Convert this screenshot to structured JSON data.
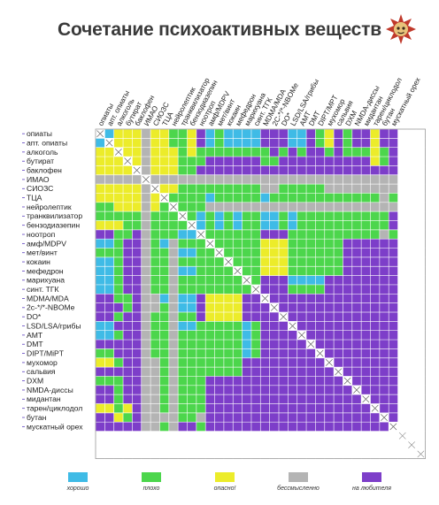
{
  "page": {
    "title": "Сочетание психоактивных веществ"
  },
  "legend": [
    {
      "key": "H",
      "label": "хорошо",
      "color": "#3fbbe6"
    },
    {
      "key": "B",
      "label": "плохо",
      "color": "#4cd64c"
    },
    {
      "key": "D",
      "label": "опасно!",
      "color": "#ecec2a"
    },
    {
      "key": "G",
      "label": "бессмысленно",
      "color": "#b4b4b4"
    },
    {
      "key": "P",
      "label": "на любителя",
      "color": "#7d3ec9"
    }
  ],
  "chart_data": {
    "type": "heatmap",
    "title": "Сочетание психоактивных веществ",
    "matrix": "symmetric substance-combination grid; X on diagonal",
    "substances": [
      "опиаты",
      "апт. опиаты",
      "алкоголь",
      "бутират",
      "баклофен",
      "ИМАО",
      "СИОЗС",
      "ТЦА",
      "нейролептик",
      "транквилизатор",
      "бензодиазепин",
      "ноотроп",
      "амф/MDPV",
      "мет/винт",
      "кокаин",
      "мефедрон",
      "марихуана",
      "синт. ТГК",
      "MDMA/MDA",
      "2C-*/*-NBOMe",
      "DO*",
      "LSD/LSA/грибы",
      "AMT",
      "DMT",
      "DIPT/MiPT",
      "мухомор",
      "сальвия",
      "DXM",
      "NMDA-диссы",
      "мидантан",
      "тарен/циклодол",
      "бутан",
      "мускатный орех"
    ],
    "column_labels": [
      "опиаты",
      "апт. опиаты",
      "алкоголь",
      "бутират",
      "баклофен",
      "ИМАО",
      "СИОЗС",
      "ТЦА",
      "нейролептик",
      "транквилизатор",
      "бензодиазепин",
      "ноотроп",
      "амф/MDPV",
      "мет/винт",
      "кокаин",
      "мефедрон",
      "марихуана",
      "синт. ТГК",
      "MDMA/MDA",
      "2С-*/*-NBOMe",
      "DO*",
      "LSD/LSA/грибы",
      "AMT",
      "DMT",
      "DIPT/MPT",
      "мухомор",
      "сальвия",
      "DXM",
      "NMDA-диссы",
      "мидантан",
      "тарен/циклодол",
      "бутан",
      "мускатный орех"
    ],
    "row_labels": [
      "опиаты",
      "апт. опиаты",
      "алкоголь",
      "бутират",
      "баклофен",
      "ИМАО",
      "СИОЗС",
      "ТЦА",
      "нейролептик",
      "транквилизатор",
      "бензодиазепин",
      "ноотроп",
      "амф/MDPV",
      "мет/винт",
      "кокаин",
      "мефедрон",
      "марихуана",
      "синт. ТГК",
      "MDMA/MDA",
      "2с-*/*-NBOMe",
      "DO*",
      "LSD/LSA/грибы",
      "AMT",
      "DMT",
      "DIPT/MiPT",
      "мухомор",
      "сальвия",
      "DXM",
      "NMDA-диссы",
      "мидантан",
      "тарен/циклодол",
      "бутан",
      "мускатный орех"
    ],
    "value_keys": {
      "H": "хорошо",
      "B": "плохо",
      "D": "опасно!",
      "G": "бессмысленно",
      "P": "на любителя",
      "X": "diagonal",
      "N": "not shown"
    },
    "rows": [
      "XHDDDGDDBBDPHBHHHHPPPHHPBDPBPPDPP",
      "HXDDDGDDBBDPHBHHHHPPPHHPBDPBPPDPP",
      "DDXDDGDDDBDBBBBBBBBPBPBPPBPBBBDBP",
      "DDDXDGDDDBBBPPPPPPBBPPPPPPPPPPDBP",
      "DDDDXGDDDBBPPPPPPPPPPPPPPPPPPPPPP",
      "GGGGGXGGGGGGGGGGGGGGGGGGGGGGGGGGG",
      "DDDDDGXDDBBBBBBBBBGGBBBBBGGGGGGGG",
      "DDDDDGDXBBBBHBBBBBHBBBBBBBBBBBBGB",
      "BBDDDGDBXBBBGGGGGGGGGGGGGGGGGGGGG",
      "BBBBBGBBBXBHBHBHBBHHBHBBBBBBBBBBP",
      "DDDBBGBBBBXHBHBHBBHHBHBBBBBBBBBBP",
      "PPBBPGBBBHHXBBBBBBPPPBBBBBBBBBBGB",
      "HHBPPGBHGBBBXBBBBBDDDBBBBBBPPPPPP",
      "BBBPPGBBGHHBBXBBBBDDDBBBBBBPPPPPP",
      "HHBPPGBBGBBBBBXBBBDDDBBBBBBPPPPPP",
      "HHBPPGBBGHHBBBBXBBDDDBBBBBBPPPPPP",
      "HHBPPGBBGBBBBBBBXBPPPHHHHPPPPPPPP",
      "HHBPPGBBGBBBBBBBBXPPPBBBBPPPPPPPP",
      "PPBBPGGHGHHPDDDDPPXPPPPPPPPPPPPPP",
      "PPPBPGGBGHHPDDDDPPPXPPPPPPPPPPPPP",
      "PPBPPGBBGBBPDDDDPPPPXPPPPPPPPPPPP",
      "HHPPPGBBGHHBBBBBHBPPPXPPPPPPPPPPP",
      "HHBPPGBBGBBBBBBBHBPPPPXPPPPPPPPPP",
      "PPPPPGBBGBBBBBBBHBPPPPPXPPPPPPPPP",
      "BBPPPGBBGBBBBBBBHBPPPPPPXPPPPPPPP",
      "DDBPPGGBGBBBBBBBPPPPPPPPPXPPPPPPP",
      "PPPPPGGBGBBBBBBBPPPPPPPPPPXPPPPPP",
      "BBBPPGGBGBBBPPPPPPPPPPPPPPPXPPPPP",
      "PPBPPGGBGBBBPPPPPPPPPPPPPPPPXPPPP",
      "PPBPPGGBGBBBPPPPPPPPPPPPPPPPPXPPP",
      "DDBDPGGBGBBBPPPPPPPPPPPPPPPPPPXPP",
      "PPDBPGGGGBBGPPPPPPPPPPPPPPPPPPPXP",
      "PPPPPGGBGPPBPPPPPPPPPPPPPPPPPPPPX"
    ],
    "extra_empty_rows": 3,
    "extra_empty_cols": 3,
    "diagonal_marker": "X",
    "grid": true,
    "legend_position": "bottom"
  }
}
